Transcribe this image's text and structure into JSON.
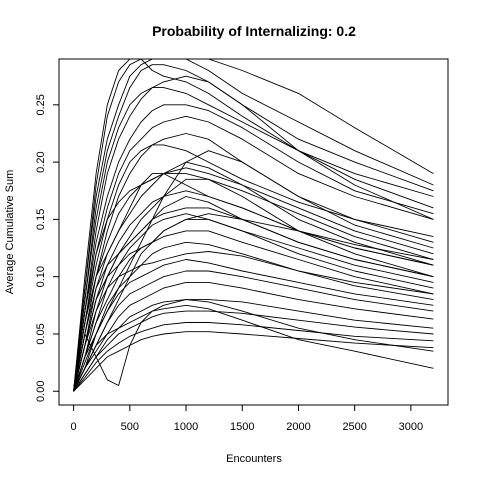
{
  "chart_data": {
    "type": "line",
    "title": "Probability of Internalizing: 0.2",
    "xlabel": "Encounters",
    "ylabel": "Average Cumulative Sum",
    "xlim": [
      -130,
      3330
    ],
    "ylim": [
      -0.012,
      0.29
    ],
    "x_ticks": [
      "0",
      "500",
      "1000",
      "1500",
      "2000",
      "2500",
      "3000"
    ],
    "y_ticks": [
      "0.00",
      "0.05",
      "0.10",
      "0.15",
      "0.20",
      "0.25"
    ],
    "grid": false,
    "legend": "none",
    "line_color": "#000000",
    "series": [
      {
        "x": [
          0,
          100,
          200,
          300,
          400,
          500,
          600,
          700,
          800,
          1000,
          1200,
          1500,
          2000,
          2500,
          3200
        ],
        "y": [
          0,
          0.09,
          0.17,
          0.22,
          0.25,
          0.275,
          0.285,
          0.29,
          0.29,
          0.29,
          0.29,
          0.28,
          0.26,
          0.23,
          0.19
        ]
      },
      {
        "x": [
          0,
          100,
          200,
          300,
          400,
          500,
          600,
          700,
          800,
          1000,
          1200,
          1500,
          2000,
          2500,
          3200
        ],
        "y": [
          0,
          0.09,
          0.18,
          0.24,
          0.27,
          0.285,
          0.29,
          0.29,
          0.29,
          0.29,
          0.28,
          0.26,
          0.235,
          0.21,
          0.18
        ]
      },
      {
        "x": [
          0,
          100,
          200,
          300,
          400,
          500,
          600,
          700,
          800,
          1000,
          1200,
          1500,
          2000,
          2500,
          3200
        ],
        "y": [
          0,
          0.08,
          0.16,
          0.21,
          0.24,
          0.265,
          0.28,
          0.285,
          0.285,
          0.28,
          0.27,
          0.25,
          0.22,
          0.2,
          0.175
        ]
      },
      {
        "x": [
          0,
          100,
          200,
          300,
          400,
          500,
          600,
          700,
          800,
          1000,
          1200,
          1500,
          2000,
          2500,
          3200
        ],
        "y": [
          0,
          0.08,
          0.15,
          0.2,
          0.23,
          0.25,
          0.26,
          0.265,
          0.265,
          0.26,
          0.25,
          0.235,
          0.21,
          0.19,
          0.17
        ]
      },
      {
        "x": [
          0,
          100,
          200,
          300,
          400,
          500,
          600,
          700,
          800,
          1000,
          1200,
          1500,
          2000,
          2500,
          3200
        ],
        "y": [
          0,
          0.07,
          0.14,
          0.19,
          0.22,
          0.24,
          0.255,
          0.265,
          0.27,
          0.275,
          0.27,
          0.25,
          0.21,
          0.185,
          0.16
        ]
      },
      {
        "x": [
          0,
          100,
          200,
          300,
          400,
          500,
          600,
          700,
          800,
          1000,
          1200,
          1500,
          2000,
          2500,
          3200
        ],
        "y": [
          0,
          0.07,
          0.13,
          0.17,
          0.2,
          0.22,
          0.235,
          0.245,
          0.25,
          0.25,
          0.245,
          0.23,
          0.2,
          0.175,
          0.155
        ]
      },
      {
        "x": [
          0,
          100,
          200,
          300,
          400,
          500,
          600,
          700,
          800,
          1000,
          1200,
          1500,
          2000,
          2500,
          3200
        ],
        "y": [
          0,
          0.06,
          0.12,
          0.16,
          0.19,
          0.21,
          0.22,
          0.23,
          0.235,
          0.24,
          0.235,
          0.22,
          0.19,
          0.17,
          0.15
        ]
      },
      {
        "x": [
          0,
          100,
          200,
          300,
          400,
          500,
          600,
          700,
          800,
          1000,
          1200,
          1500,
          2000,
          2500,
          3200
        ],
        "y": [
          0,
          0.06,
          0.11,
          0.15,
          0.18,
          0.2,
          0.21,
          0.215,
          0.215,
          0.21,
          0.2,
          0.185,
          0.165,
          0.15,
          0.135
        ]
      },
      {
        "x": [
          0,
          100,
          200,
          300,
          400,
          500,
          600,
          700,
          800,
          1000,
          1200,
          1500,
          2000,
          2500,
          3200
        ],
        "y": [
          0,
          0.05,
          0.1,
          0.14,
          0.17,
          0.19,
          0.205,
          0.215,
          0.22,
          0.225,
          0.22,
          0.2,
          0.17,
          0.145,
          0.125
        ]
      },
      {
        "x": [
          0,
          100,
          200,
          300,
          400,
          500,
          600,
          700,
          800,
          1000,
          1200,
          1500,
          2000,
          2500,
          3200
        ],
        "y": [
          0,
          0.05,
          0.1,
          0.13,
          0.155,
          0.17,
          0.18,
          0.185,
          0.19,
          0.19,
          0.185,
          0.175,
          0.155,
          0.135,
          0.115
        ]
      },
      {
        "x": [
          0,
          100,
          200,
          300,
          400,
          500,
          600,
          700,
          800,
          1000,
          1200,
          1500,
          2000,
          2500,
          3200
        ],
        "y": [
          0,
          0.04,
          0.09,
          0.12,
          0.14,
          0.155,
          0.17,
          0.18,
          0.19,
          0.2,
          0.195,
          0.18,
          0.15,
          0.13,
          0.11
        ]
      },
      {
        "x": [
          0,
          100,
          200,
          300,
          400,
          500,
          600,
          700,
          800,
          1000,
          1200,
          1500,
          2000,
          2500,
          3200
        ],
        "y": [
          0,
          0.04,
          0.08,
          0.11,
          0.13,
          0.145,
          0.155,
          0.165,
          0.17,
          0.175,
          0.17,
          0.16,
          0.14,
          0.125,
          0.11
        ]
      },
      {
        "x": [
          0,
          100,
          200,
          300,
          400,
          500,
          600,
          700,
          800,
          1000,
          1200,
          1500,
          2000,
          2500,
          3200
        ],
        "y": [
          0,
          0.04,
          0.08,
          0.1,
          0.12,
          0.135,
          0.15,
          0.16,
          0.17,
          0.185,
          0.185,
          0.17,
          0.14,
          0.12,
          0.1
        ]
      },
      {
        "x": [
          0,
          100,
          200,
          300,
          400,
          500,
          600,
          700,
          800,
          1000,
          1200,
          1500,
          2000,
          2500,
          3200
        ],
        "y": [
          0,
          0.03,
          0.07,
          0.1,
          0.12,
          0.13,
          0.14,
          0.15,
          0.155,
          0.16,
          0.16,
          0.15,
          0.13,
          0.115,
          0.1
        ]
      },
      {
        "x": [
          0,
          100,
          200,
          300,
          400,
          500,
          600,
          700,
          800,
          1000,
          1200,
          1500,
          2000,
          2500,
          3200
        ],
        "y": [
          0,
          0.03,
          0.06,
          0.09,
          0.11,
          0.125,
          0.135,
          0.145,
          0.15,
          0.155,
          0.15,
          0.14,
          0.12,
          0.105,
          0.09
        ]
      },
      {
        "x": [
          0,
          100,
          200,
          300,
          400,
          500,
          600,
          700,
          800,
          1000,
          1200,
          1500,
          2000,
          2500,
          3200
        ],
        "y": [
          0,
          0.03,
          0.06,
          0.08,
          0.1,
          0.115,
          0.125,
          0.13,
          0.135,
          0.14,
          0.14,
          0.13,
          0.115,
          0.1,
          0.085
        ]
      },
      {
        "x": [
          0,
          100,
          200,
          300,
          400,
          500,
          600,
          700,
          800,
          1000,
          1200,
          1500,
          2000,
          2500,
          3200
        ],
        "y": [
          0,
          0.025,
          0.05,
          0.075,
          0.09,
          0.1,
          0.11,
          0.12,
          0.125,
          0.13,
          0.128,
          0.12,
          0.105,
          0.092,
          0.08
        ]
      },
      {
        "x": [
          0,
          100,
          200,
          300,
          400,
          500,
          600,
          700,
          800,
          1000,
          1200,
          1500,
          2000,
          2500,
          3200
        ],
        "y": [
          0,
          0.02,
          0.05,
          0.07,
          0.085,
          0.095,
          0.1,
          0.105,
          0.11,
          0.115,
          0.112,
          0.105,
          0.095,
          0.085,
          0.075
        ]
      },
      {
        "x": [
          0,
          100,
          200,
          300,
          400,
          500,
          600,
          700,
          800,
          1000,
          1200,
          1500,
          2000,
          2500,
          3200
        ],
        "y": [
          0,
          0.02,
          0.04,
          0.06,
          0.075,
          0.085,
          0.09,
          0.095,
          0.1,
          0.105,
          0.105,
          0.1,
          0.09,
          0.08,
          0.07
        ]
      },
      {
        "x": [
          0,
          100,
          200,
          300,
          400,
          500,
          600,
          700,
          800,
          1000,
          1200,
          1500,
          2000,
          2500,
          3200
        ],
        "y": [
          0,
          0.02,
          0.035,
          0.05,
          0.065,
          0.075,
          0.08,
          0.085,
          0.09,
          0.095,
          0.095,
          0.09,
          0.08,
          0.072,
          0.063
        ]
      },
      {
        "x": [
          0,
          100,
          200,
          300,
          400,
          500,
          600,
          700,
          800,
          1000,
          1200,
          1500,
          2000,
          2500,
          3200
        ],
        "y": [
          0,
          0.015,
          0.03,
          0.045,
          0.055,
          0.065,
          0.07,
          0.075,
          0.078,
          0.08,
          0.08,
          0.078,
          0.07,
          0.062,
          0.055
        ]
      },
      {
        "x": [
          0,
          100,
          200,
          300,
          400,
          500,
          600,
          700,
          800,
          1000,
          1200,
          1500,
          2000,
          2500,
          3200
        ],
        "y": [
          0,
          0.015,
          0.03,
          0.04,
          0.05,
          0.055,
          0.06,
          0.065,
          0.068,
          0.07,
          0.07,
          0.068,
          0.062,
          0.056,
          0.05
        ]
      },
      {
        "x": [
          0,
          100,
          200,
          300,
          400,
          500,
          600,
          700,
          800,
          1000,
          1200,
          1500,
          2000,
          2500,
          3200
        ],
        "y": [
          0,
          0.012,
          0.025,
          0.035,
          0.042,
          0.048,
          0.052,
          0.055,
          0.058,
          0.06,
          0.06,
          0.058,
          0.053,
          0.048,
          0.044
        ]
      },
      {
        "x": [
          0,
          100,
          200,
          300,
          400,
          500,
          600,
          700,
          800,
          1000,
          1200,
          1500,
          2000,
          2500,
          3200
        ],
        "y": [
          0,
          0.01,
          0.02,
          0.03,
          0.035,
          0.04,
          0.045,
          0.048,
          0.05,
          0.052,
          0.052,
          0.05,
          0.046,
          0.042,
          0.038
        ]
      },
      {
        "x": [
          0,
          100,
          200,
          300,
          400,
          500,
          600,
          700,
          800,
          1000,
          1200,
          1500,
          2000,
          2500,
          3200
        ],
        "y": [
          0,
          0.05,
          0.03,
          0.01,
          0.005,
          0.04,
          0.06,
          0.07,
          0.075,
          0.08,
          0.078,
          0.07,
          0.055,
          0.045,
          0.035
        ]
      },
      {
        "x": [
          0,
          100,
          200,
          300,
          400,
          500,
          600,
          700,
          800,
          1000,
          1200,
          1500,
          2000,
          2500,
          3200
        ],
        "y": [
          0,
          0.02,
          0.04,
          0.05,
          0.055,
          0.06,
          0.065,
          0.07,
          0.072,
          0.075,
          0.072,
          0.062,
          0.045,
          0.035,
          0.02
        ]
      },
      {
        "x": [
          0,
          100,
          200,
          300,
          400,
          500,
          600,
          700,
          800,
          1000,
          1200,
          1500,
          2000,
          2500,
          3200
        ],
        "y": [
          0,
          0.06,
          0.1,
          0.12,
          0.14,
          0.16,
          0.18,
          0.19,
          0.19,
          0.18,
          0.17,
          0.16,
          0.14,
          0.125,
          0.11
        ]
      },
      {
        "x": [
          0,
          100,
          200,
          300,
          400,
          500,
          600,
          700,
          800,
          1000,
          1200,
          1500,
          2000,
          2500,
          3200
        ],
        "y": [
          0,
          0.05,
          0.09,
          0.11,
          0.12,
          0.13,
          0.14,
          0.15,
          0.16,
          0.17,
          0.165,
          0.15,
          0.13,
          0.115,
          0.1
        ]
      },
      {
        "x": [
          0,
          100,
          200,
          300,
          400,
          500,
          600,
          700,
          800,
          1000,
          1200,
          1500,
          2000,
          2500,
          3200
        ],
        "y": [
          0,
          0.04,
          0.08,
          0.1,
          0.11,
          0.12,
          0.125,
          0.13,
          0.14,
          0.15,
          0.15,
          0.14,
          0.125,
          0.11,
          0.095
        ]
      },
      {
        "x": [
          0,
          100,
          200,
          300,
          400,
          500,
          600,
          700,
          800,
          1000,
          1200,
          1500,
          2000,
          2500,
          3200
        ],
        "y": [
          0,
          0.1,
          0.19,
          0.25,
          0.28,
          0.29,
          0.29,
          0.28,
          0.275,
          0.27,
          0.26,
          0.24,
          0.21,
          0.18,
          0.15
        ]
      },
      {
        "x": [
          0,
          100,
          200,
          300,
          400,
          500,
          600,
          700,
          800,
          1000,
          1200,
          1500,
          2000,
          2500,
          3200
        ],
        "y": [
          0,
          0.07,
          0.12,
          0.15,
          0.165,
          0.175,
          0.18,
          0.185,
          0.19,
          0.195,
          0.19,
          0.18,
          0.16,
          0.14,
          0.12
        ]
      },
      {
        "x": [
          0,
          100,
          200,
          300,
          400,
          500,
          600,
          700,
          800,
          1000,
          1200,
          1500,
          2000,
          2500,
          3200
        ],
        "y": [
          0,
          0.03,
          0.05,
          0.07,
          0.09,
          0.11,
          0.13,
          0.15,
          0.17,
          0.2,
          0.21,
          0.2,
          0.17,
          0.15,
          0.13
        ]
      },
      {
        "x": [
          0,
          100,
          200,
          300,
          400,
          500,
          600,
          700,
          800,
          1000,
          1200,
          1500,
          2000,
          2500,
          3200
        ],
        "y": [
          0,
          0.02,
          0.04,
          0.06,
          0.08,
          0.1,
          0.12,
          0.13,
          0.14,
          0.15,
          0.155,
          0.15,
          0.14,
          0.128,
          0.115
        ]
      },
      {
        "x": [
          0,
          100,
          200,
          300,
          400,
          500,
          600,
          700,
          800,
          1000,
          1200,
          1500,
          2000,
          2500,
          3200
        ],
        "y": [
          0,
          0.04,
          0.07,
          0.09,
          0.1,
          0.105,
          0.11,
          0.112,
          0.115,
          0.12,
          0.122,
          0.118,
          0.105,
          0.095,
          0.085
        ]
      }
    ]
  }
}
